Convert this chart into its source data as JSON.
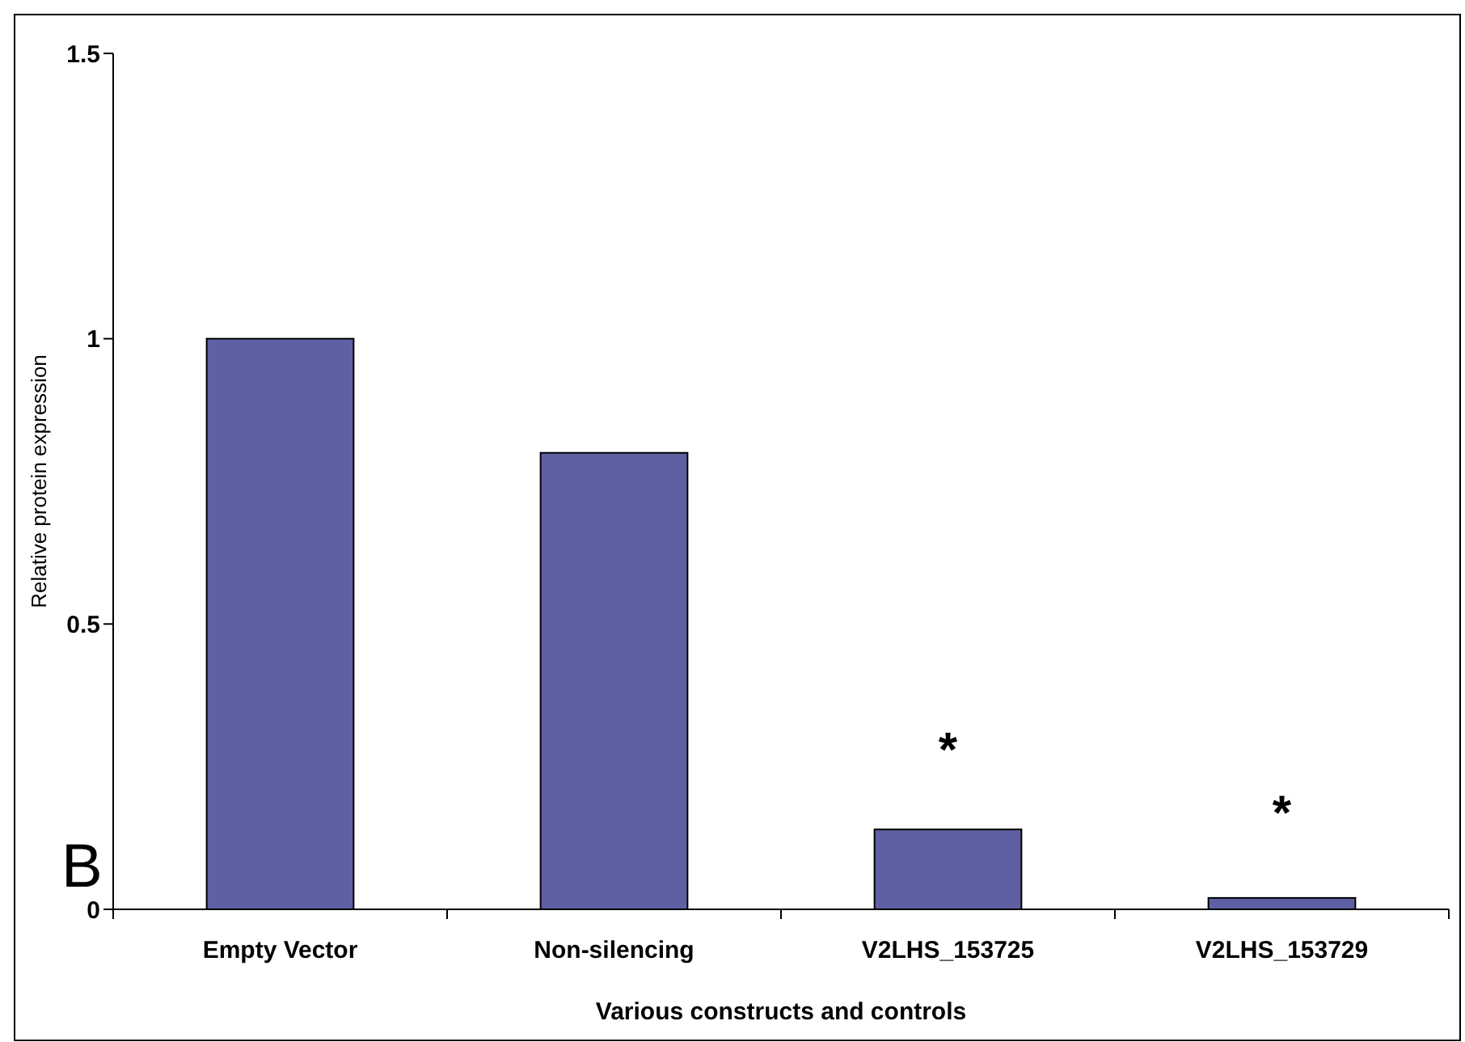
{
  "chart_data": {
    "type": "bar",
    "xlabel": "Various constructs and controls",
    "ylabel": "Relative protein expression",
    "categories": [
      "Empty Vector",
      "Non-silencing",
      "V2LHS_153725",
      "V2LHS_153729"
    ],
    "series": [
      {
        "color": "#5f5fa3",
        "values": [
          1.0,
          0.8,
          0.14,
          0.02
        ]
      }
    ],
    "ylim": [
      0,
      1.5
    ],
    "yticks": [
      0,
      {
        "value": 0.5,
        "label": "0.5"
      },
      1,
      1.5
    ],
    "grid": false,
    "annotations": [
      "*",
      "*",
      "B"
    ]
  }
}
